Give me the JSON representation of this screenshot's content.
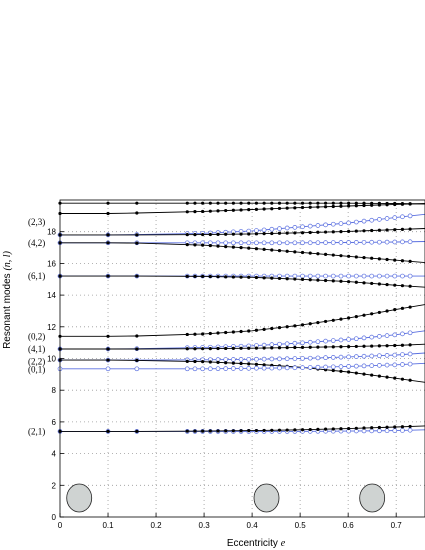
{
  "chart_data": {
    "type": "line",
    "xlabel_text": "Eccentricity",
    "xlabel_var": "e",
    "ylabel_text": "Resonant modes",
    "ylabel_var": "(n, l)",
    "xlim": [
      0,
      0.76
    ],
    "ylim": [
      0,
      20
    ],
    "xticks": [
      0,
      0.1,
      0.2,
      0.3,
      0.4,
      0.5,
      0.6,
      0.7
    ],
    "yticks": [
      0,
      2,
      4,
      6,
      8,
      10,
      12,
      14,
      16,
      18
    ],
    "grid": true,
    "colors": {
      "black": "#000000",
      "blue": "#5a6fe0",
      "grid": "#9a9a9a",
      "ellipse_fill": "#cfd3d2"
    },
    "mode_labels": [
      {
        "text": "(2,3)",
        "y": 18.6
      },
      {
        "text": "(4,2)",
        "y": 17.3
      },
      {
        "text": "(6,1)",
        "y": 15.2
      },
      {
        "text": "(0,2)",
        "y": 11.4
      },
      {
        "text": "(4,1)",
        "y": 10.6
      },
      {
        "text": "(2,2)",
        "y": 9.8
      },
      {
        "text": "(0,1)",
        "y": 9.3
      },
      {
        "text": "(2,1)",
        "y": 5.4
      }
    ],
    "ellipses": [
      {
        "cx": 0.04,
        "cy": 1.2
      },
      {
        "cx": 0.43,
        "cy": 1.2
      },
      {
        "cx": 0.65,
        "cy": 1.2
      }
    ],
    "series": [
      {
        "color": "black",
        "markers": "filled",
        "x": [
          0,
          0.1,
          0.16,
          0.3,
          0.4,
          0.5,
          0.6,
          0.7,
          0.76
        ],
        "y": [
          19.8,
          19.8,
          19.8,
          19.8,
          19.8,
          19.8,
          19.8,
          19.78,
          19.75
        ]
      },
      {
        "color": "black",
        "markers": "filled",
        "x": [
          0,
          0.1,
          0.16,
          0.3,
          0.4,
          0.5,
          0.6,
          0.7,
          0.76
        ],
        "y": [
          19.15,
          19.15,
          19.18,
          19.28,
          19.4,
          19.52,
          19.62,
          19.72,
          19.78
        ]
      },
      {
        "color": "blue",
        "markers": "hollow",
        "x": [
          0,
          0.1,
          0.16,
          0.3,
          0.4,
          0.5,
          0.6,
          0.7,
          0.76
        ],
        "y": [
          17.8,
          17.8,
          17.82,
          17.9,
          18.05,
          18.3,
          18.55,
          18.9,
          19.1
        ]
      },
      {
        "color": "black",
        "markers": "filled",
        "x": [
          0,
          0.1,
          0.16,
          0.3,
          0.4,
          0.5,
          0.6,
          0.7,
          0.76
        ],
        "y": [
          17.8,
          17.8,
          17.8,
          17.82,
          17.86,
          17.93,
          18.02,
          18.13,
          18.2
        ]
      },
      {
        "color": "blue",
        "markers": "hollow",
        "x": [
          0,
          0.1,
          0.16,
          0.3,
          0.4,
          0.5,
          0.6,
          0.7,
          0.76
        ],
        "y": [
          17.3,
          17.3,
          17.3,
          17.3,
          17.3,
          17.3,
          17.32,
          17.35,
          17.38
        ]
      },
      {
        "color": "black",
        "markers": "filled",
        "x": [
          0,
          0.1,
          0.16,
          0.3,
          0.4,
          0.5,
          0.6,
          0.7,
          0.76
        ],
        "y": [
          17.3,
          17.3,
          17.28,
          17.15,
          16.95,
          16.7,
          16.45,
          16.2,
          16.05
        ]
      },
      {
        "color": "blue",
        "markers": "hollow",
        "x": [
          0,
          0.1,
          0.16,
          0.3,
          0.4,
          0.5,
          0.6,
          0.7,
          0.76
        ],
        "y": [
          15.2,
          15.2,
          15.2,
          15.2,
          15.2,
          15.2,
          15.2,
          15.2,
          15.2
        ]
      },
      {
        "color": "black",
        "markers": "filled",
        "x": [
          0,
          0.1,
          0.16,
          0.3,
          0.4,
          0.5,
          0.6,
          0.7,
          0.76
        ],
        "y": [
          15.2,
          15.2,
          15.2,
          15.18,
          15.12,
          15.0,
          14.85,
          14.62,
          14.5
        ]
      },
      {
        "color": "black",
        "markers": "filled",
        "x": [
          0,
          0.1,
          0.16,
          0.3,
          0.4,
          0.5,
          0.6,
          0.7,
          0.76
        ],
        "y": [
          11.4,
          11.4,
          11.42,
          11.55,
          11.75,
          12.1,
          12.55,
          13.1,
          13.4
        ]
      },
      {
        "color": "blue",
        "markers": "hollow",
        "x": [
          0,
          0.1,
          0.16,
          0.3,
          0.4,
          0.5,
          0.6,
          0.7,
          0.76
        ],
        "y": [
          10.6,
          10.6,
          10.62,
          10.7,
          10.8,
          10.98,
          11.2,
          11.5,
          11.75
        ]
      },
      {
        "color": "black",
        "markers": "filled",
        "x": [
          0,
          0.1,
          0.16,
          0.3,
          0.4,
          0.5,
          0.6,
          0.7,
          0.76
        ],
        "y": [
          10.6,
          10.6,
          10.6,
          10.62,
          10.65,
          10.7,
          10.75,
          10.82,
          10.9
        ]
      },
      {
        "color": "blue",
        "markers": "hollow",
        "x": [
          0,
          0.1,
          0.16,
          0.3,
          0.4,
          0.5,
          0.6,
          0.7,
          0.76
        ],
        "y": [
          9.9,
          9.9,
          9.9,
          9.92,
          9.95,
          10.0,
          10.1,
          10.22,
          10.35
        ]
      },
      {
        "color": "black",
        "markers": "filled",
        "x": [
          0,
          0.1,
          0.16,
          0.3,
          0.4,
          0.5,
          0.6,
          0.7,
          0.76
        ],
        "y": [
          9.9,
          9.9,
          9.88,
          9.8,
          9.65,
          9.45,
          9.15,
          8.75,
          8.5
        ]
      },
      {
        "color": "blue",
        "markers": "hollow",
        "x": [
          0,
          0.1,
          0.16,
          0.3,
          0.4,
          0.5,
          0.6,
          0.7,
          0.76
        ],
        "y": [
          9.35,
          9.35,
          9.35,
          9.35,
          9.38,
          9.42,
          9.5,
          9.6,
          9.7
        ]
      },
      {
        "color": "blue",
        "markers": "hollow",
        "x": [
          0,
          0.1,
          0.16,
          0.3,
          0.4,
          0.5,
          0.6,
          0.7,
          0.76
        ],
        "y": [
          5.4,
          5.4,
          5.4,
          5.4,
          5.4,
          5.4,
          5.42,
          5.45,
          5.5
        ]
      },
      {
        "color": "black",
        "markers": "filled",
        "x": [
          0,
          0.1,
          0.16,
          0.3,
          0.4,
          0.5,
          0.6,
          0.7,
          0.76
        ],
        "y": [
          5.4,
          5.4,
          5.4,
          5.42,
          5.45,
          5.5,
          5.58,
          5.68,
          5.75
        ]
      }
    ]
  }
}
